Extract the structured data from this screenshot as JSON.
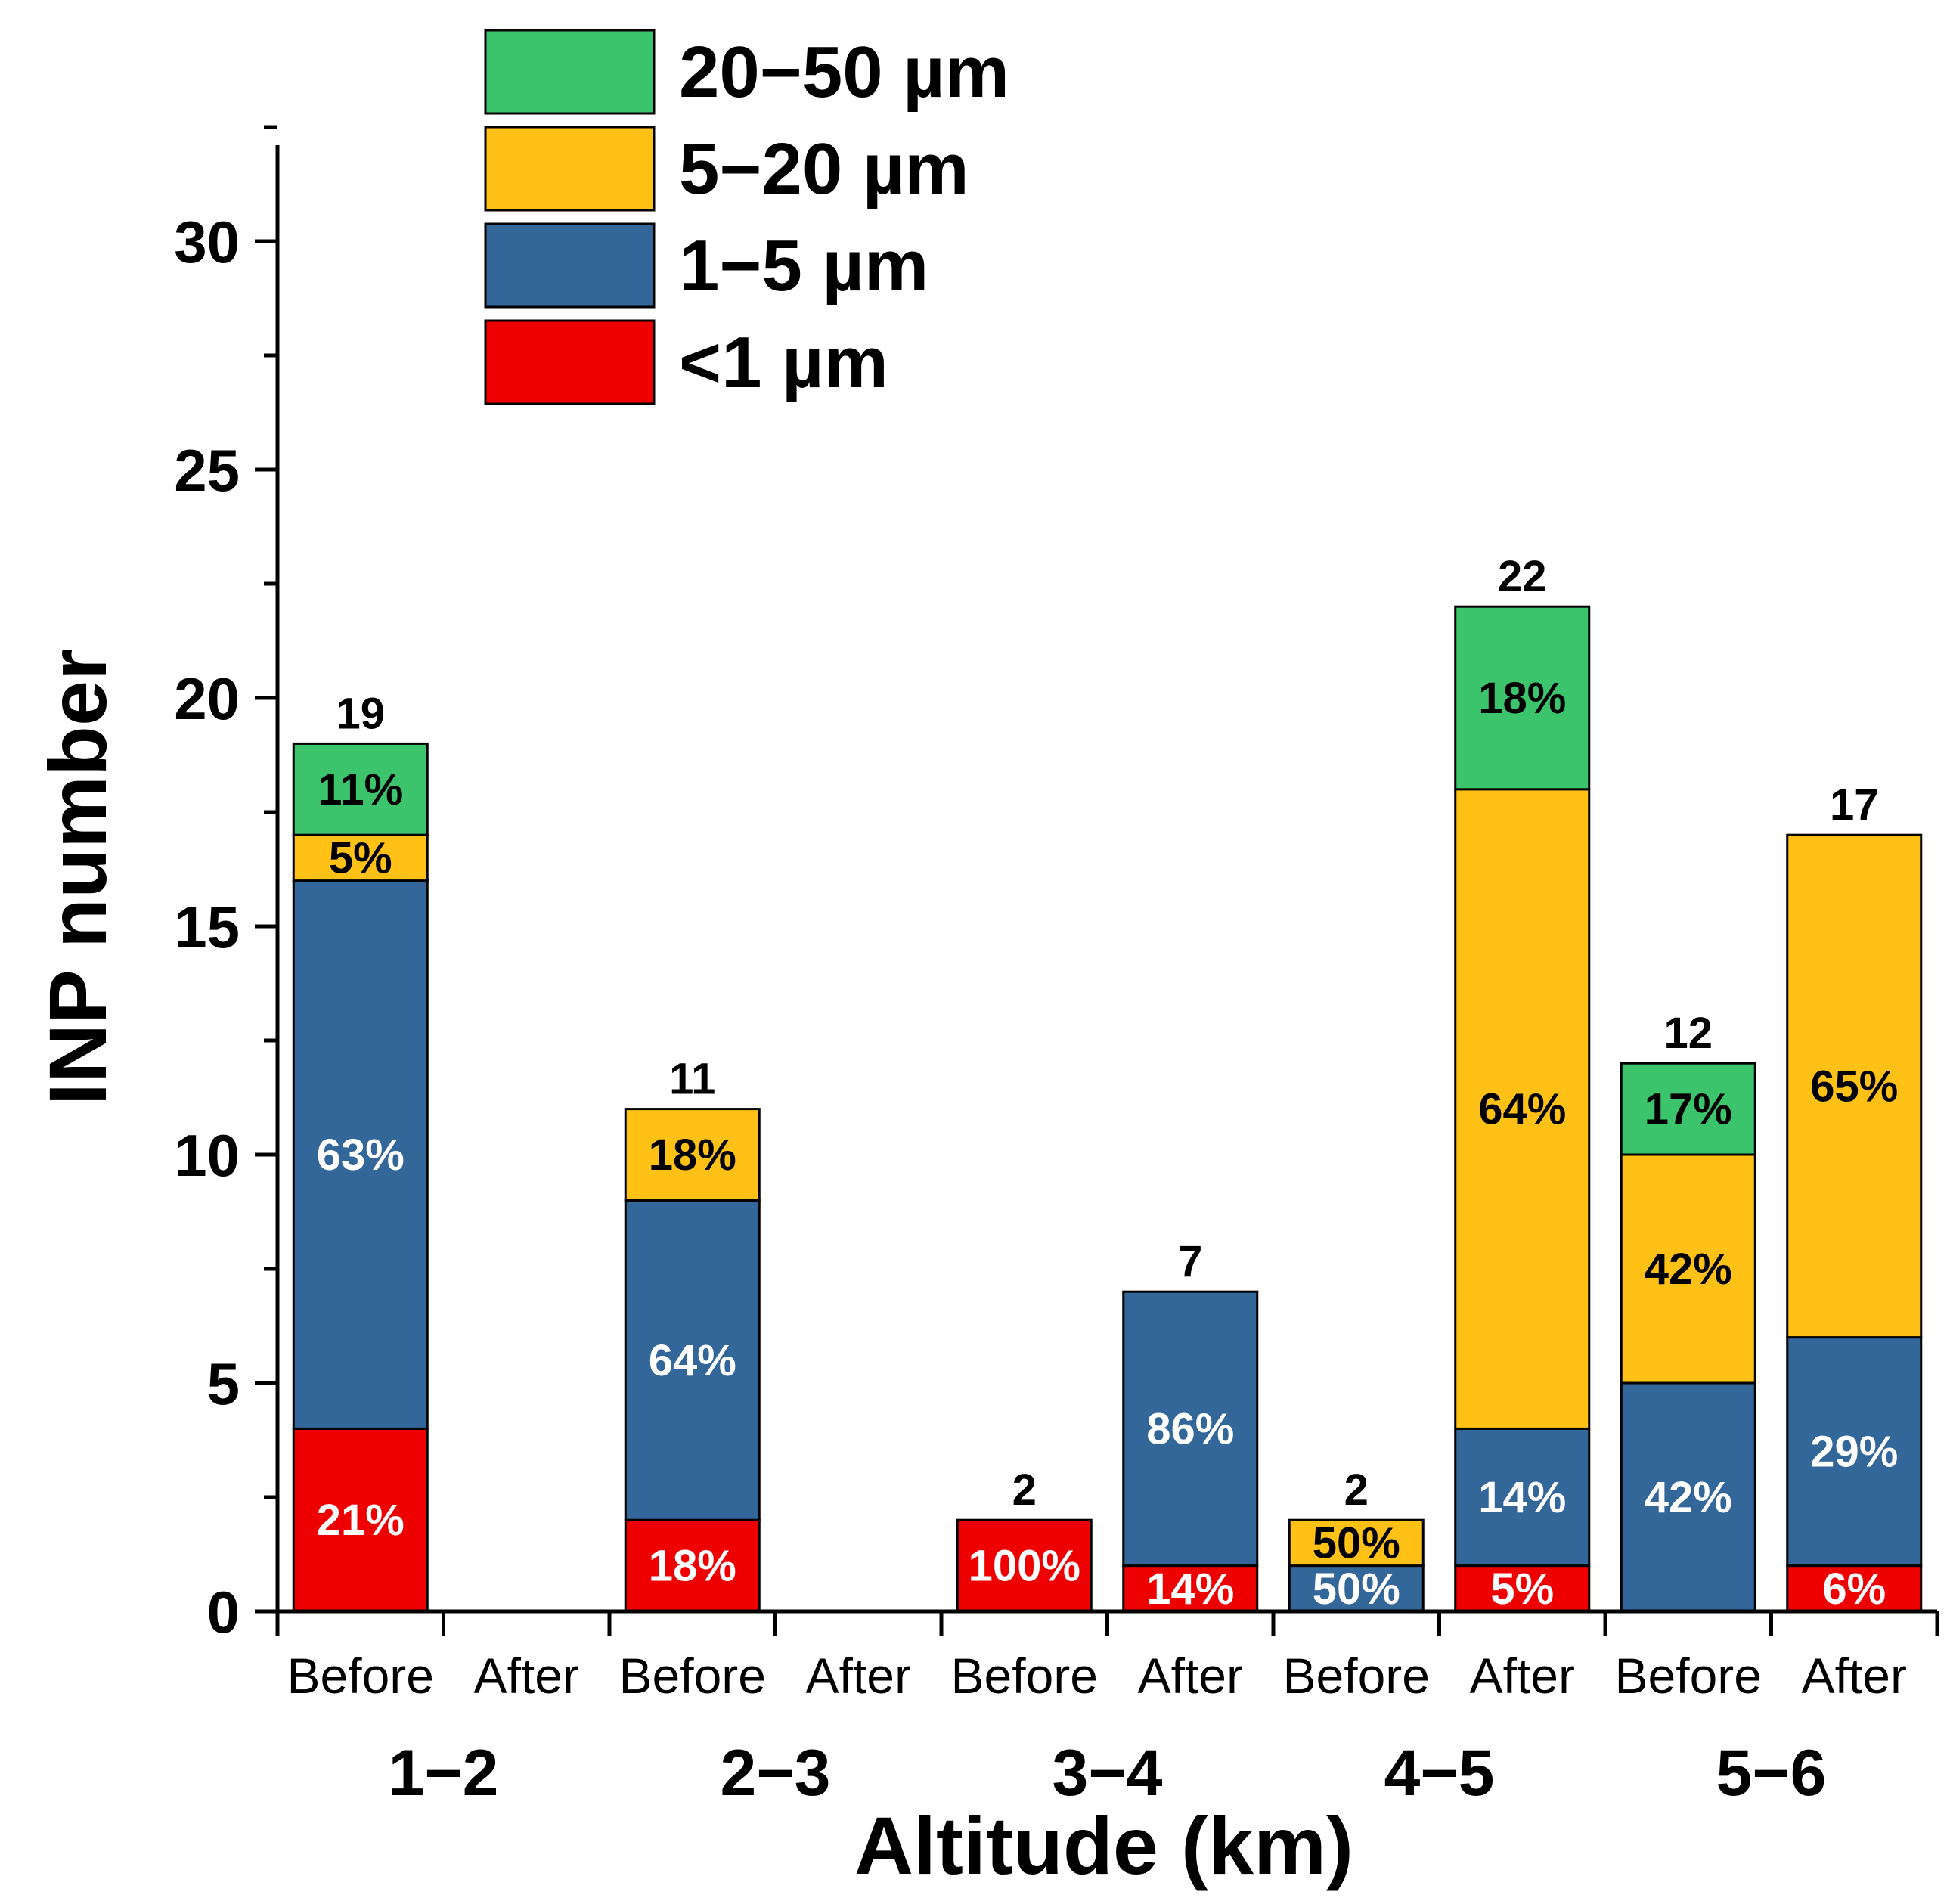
{
  "chart_data": {
    "type": "bar",
    "stacked": true,
    "xlabel": "Altitude (km)",
    "ylabel": "INP number",
    "ylim": [
      0,
      32.5
    ],
    "yticks": [
      0,
      5,
      10,
      15,
      20,
      25,
      30
    ],
    "groups": [
      "1−2",
      "2−3",
      "3−4",
      "4−5",
      "5−6"
    ],
    "categories": [
      "Before",
      "After",
      "Before",
      "After",
      "Before",
      "After",
      "Before",
      "After",
      "Before",
      "After"
    ],
    "legend_position": "top-center",
    "series": [
      {
        "name": "<1 µm",
        "color": "#EE0000",
        "label_color": "#ffffff",
        "values": [
          4,
          0,
          2,
          0,
          2,
          1,
          0,
          1,
          0,
          1
        ],
        "labels": [
          "21%",
          "",
          "18%",
          "",
          "100%",
          "14%",
          "",
          "5%",
          "",
          "6%"
        ]
      },
      {
        "name": "1−5 µm",
        "color": "#336699",
        "label_color": "#ffffff",
        "values": [
          12,
          0,
          7,
          0,
          0,
          6,
          1,
          3,
          5,
          5
        ],
        "labels": [
          "63%",
          "",
          "64%",
          "",
          "",
          "86%",
          "50%",
          "14%",
          "42%",
          "29%"
        ]
      },
      {
        "name": "5−20 µm",
        "color": "#FFC115",
        "label_color": "#000000",
        "values": [
          1,
          0,
          2,
          0,
          0,
          0,
          1,
          14,
          5,
          11
        ],
        "labels": [
          "5%",
          "",
          "18%",
          "",
          "",
          "",
          "50%",
          "64%",
          "42%",
          "65%"
        ]
      },
      {
        "name": "20−50 µm",
        "color": "#3CC46C",
        "label_color": "#000000",
        "values": [
          2,
          0,
          0,
          0,
          0,
          0,
          0,
          4,
          2,
          0
        ],
        "labels": [
          "11%",
          "",
          "",
          "",
          "",
          "",
          "",
          "18%",
          "17%",
          ""
        ]
      }
    ],
    "totals": [
      "19",
      "",
      "11",
      "",
      "2",
      "7",
      "2",
      "22",
      "12",
      "17"
    ]
  }
}
